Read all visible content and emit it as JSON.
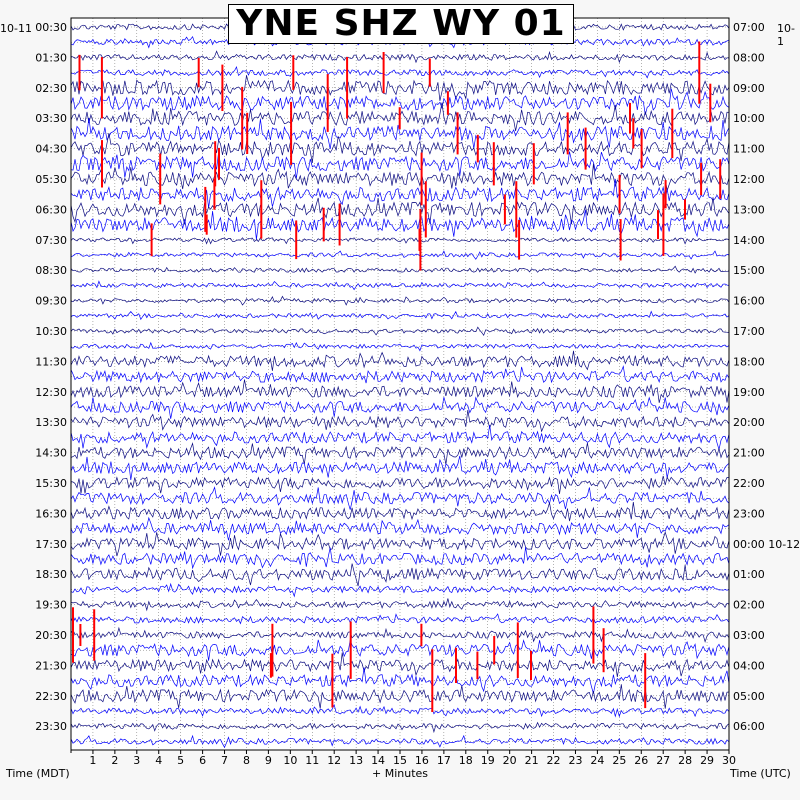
{
  "title": "YNE SHZ WY 01",
  "dates": {
    "left": "10-11",
    "right": "10-1"
  },
  "colors": {
    "trace_a": "#0a0a80",
    "trace_b": "#0000ff",
    "event": "#ff0000",
    "plot_bg": "#ffffff",
    "page_bg": "#f7f7f7",
    "grid": "#000000"
  },
  "chart_data": {
    "type": "helicorder",
    "title": "YNE SHZ WY 01",
    "xlabel": "+ Minutes",
    "ylabel_left": "Time (MDT)",
    "ylabel_right": "Time (UTC)",
    "x_ticks": [
      1,
      2,
      3,
      4,
      5,
      6,
      7,
      8,
      9,
      10,
      11,
      12,
      13,
      14,
      15,
      16,
      17,
      18,
      19,
      20,
      21,
      22,
      23,
      24,
      25,
      26,
      27,
      28,
      29,
      30
    ],
    "xlim": [
      0,
      30
    ],
    "left_times": [
      "00:30",
      "01:30",
      "02:30",
      "03:30",
      "04:30",
      "05:30",
      "06:30",
      "07:30",
      "08:30",
      "09:30",
      "10:30",
      "11:30",
      "12:30",
      "13:30",
      "14:30",
      "15:30",
      "16:30",
      "17:30",
      "18:30",
      "19:30",
      "20:30",
      "21:30",
      "22:30",
      "23:30"
    ],
    "right_times": [
      "07:00",
      "08:00",
      "09:00",
      "10:00",
      "11:00",
      "12:00",
      "13:00",
      "14:00",
      "15:00",
      "16:00",
      "17:00",
      "18:00",
      "19:00",
      "20:00",
      "21:00",
      "22:00",
      "23:00",
      "00:00 10-12",
      "01:00",
      "02:00",
      "03:00",
      "04:00",
      "05:00",
      "06:00"
    ],
    "trace_count": 48,
    "minutes_per_line": 30,
    "grid": true
  }
}
